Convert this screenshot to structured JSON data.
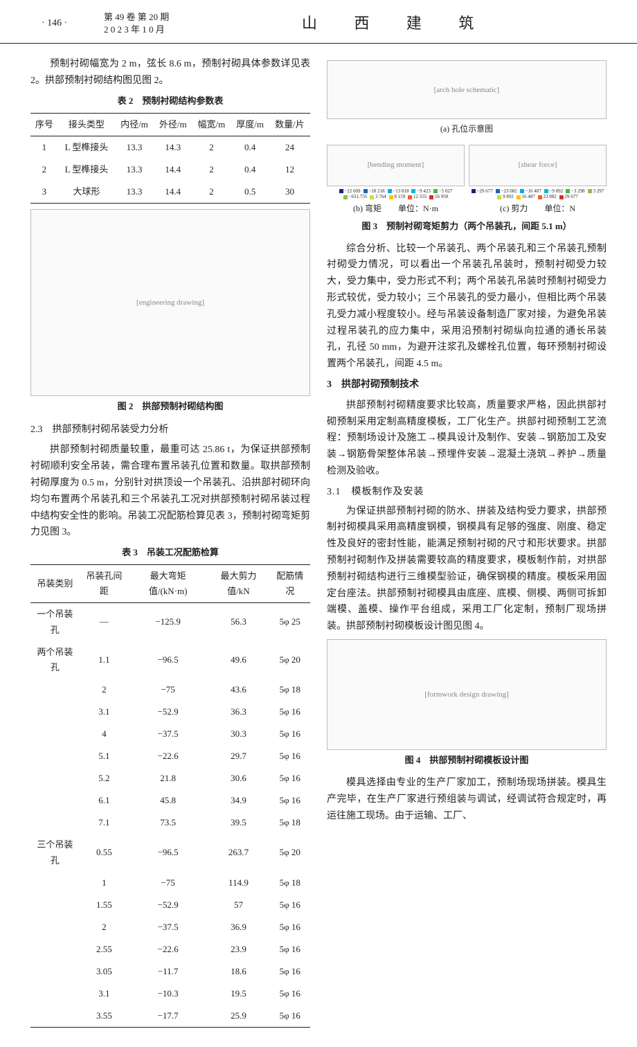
{
  "header": {
    "page_number": "· 146 ·",
    "volume": "第 49 卷 第 20 期",
    "date": "2 0 2 3 年 1 0 月",
    "journal": "山 西 建 筑"
  },
  "left": {
    "p1": "预制衬砌幅宽为 2 m，弦长 8.6 m，预制衬砌具体参数详见表 2。拱部预制衬砌结构图见图 2。",
    "table2_title": "表 2　预制衬砌结构参数表",
    "table2_cols": [
      "序号",
      "接头类型",
      "内径/m",
      "外径/m",
      "幅宽/m",
      "厚度/m",
      "数量/片"
    ],
    "table2_rows": [
      [
        "1",
        "L 型榫接头",
        "13.3",
        "14.3",
        "2",
        "0.4",
        "24"
      ],
      [
        "2",
        "L 型榫接头",
        "13.3",
        "14.4",
        "2",
        "0.4",
        "12"
      ],
      [
        "3",
        "大球形",
        "13.3",
        "14.4",
        "2",
        "0.5",
        "30"
      ]
    ],
    "fig2_caption": "图 2　拱部预制衬砌结构图",
    "sec23": "2.3　拱部预制衬砌吊装受力分析",
    "p2": "拱部预制衬砌质量较重，最重可达 25.86 t，为保证拱部预制衬砌顺利安全吊装，需合理布置吊装孔位置和数量。取拱部预制衬砌厚度为 0.5 m，分别针对拱顶设一个吊装孔、沿拱部衬砌环向均匀布置两个吊装孔和三个吊装孔工况对拱部预制衬砌吊装过程中结构安全性的影响。吊装工况配筋检算见表 3，预制衬砌弯矩剪力见图 3。",
    "table3_title": "表 3　吊装工况配筋检算",
    "table3_cols": [
      "吊装类别",
      "吊装孔间距",
      "最大弯矩值/(kN·m)",
      "最大剪力值/kN",
      "配筋情况"
    ],
    "table3_rows": [
      [
        "一个吊装孔",
        "—",
        "−125.9",
        "56.3",
        "5φ 25"
      ],
      [
        "两个吊装孔",
        "1.1",
        "−96.5",
        "49.6",
        "5φ 20"
      ],
      [
        "",
        "2",
        "−75",
        "43.6",
        "5φ 18"
      ],
      [
        "",
        "3.1",
        "−52.9",
        "36.3",
        "5φ 16"
      ],
      [
        "",
        "4",
        "−37.5",
        "30.3",
        "5φ 16"
      ],
      [
        "",
        "5.1",
        "−22.6",
        "29.7",
        "5φ 16"
      ],
      [
        "",
        "5.2",
        "21.8",
        "30.6",
        "5φ 16"
      ],
      [
        "",
        "6.1",
        "45.8",
        "34.9",
        "5φ 16"
      ],
      [
        "",
        "7.1",
        "73.5",
        "39.5",
        "5φ 18"
      ],
      [
        "三个吊装孔",
        "0.55",
        "−96.5",
        "263.7",
        "5φ 20"
      ],
      [
        "",
        "1",
        "−75",
        "114.9",
        "5φ 18"
      ],
      [
        "",
        "1.55",
        "−52.9",
        "57",
        "5φ 16"
      ],
      [
        "",
        "2",
        "−37.5",
        "36.9",
        "5φ 16"
      ],
      [
        "",
        "2.55",
        "−22.6",
        "23.9",
        "5φ 16"
      ],
      [
        "",
        "3.05",
        "−11.7",
        "18.6",
        "5φ 16"
      ],
      [
        "",
        "3.1",
        "−10.3",
        "19.5",
        "5φ 16"
      ],
      [
        "",
        "3.55",
        "−17.7",
        "25.9",
        "5φ 16"
      ]
    ]
  },
  "right": {
    "fig3_sub_a": "(a) 孔位示意图",
    "fig3_sub_b": "(b) 弯矩　　单位：N·m",
    "fig3_sub_c": "(c) 剪力　　单位：N",
    "fig3_caption": "图 3　预制衬砌弯矩剪力（两个吊装孔，间距 5.1 m）",
    "legend_b": [
      "−22 609",
      "−18 218",
      "−13 818",
      "−9 423",
      "−5 027",
      "−631.735",
      "3 764",
      "8 159",
      "12 555",
      "16 950"
    ],
    "legend_c": [
      "−29 677",
      "−23 082",
      "−16 487",
      "−9 892",
      "−3 298",
      "3 297",
      "9 892",
      "16 487",
      "23 082",
      "29 677"
    ],
    "legend_colors": [
      "#1a237e",
      "#1565c0",
      "#03a9f4",
      "#00bcd4",
      "#4caf50",
      "#8bc34a",
      "#cddc39",
      "#ffc107",
      "#ff5722",
      "#d32f2f"
    ],
    "p3": "综合分析、比较一个吊装孔、两个吊装孔和三个吊装孔预制衬砌受力情况，可以看出一个吊装孔吊装时，预制衬砌受力较大，受力集中，受力形式不利；两个吊装孔吊装时预制衬砌受力形式较优，受力较小；三个吊装孔的受力最小，但相比两个吊装孔受力减小程度较小。经与吊装设备制造厂家对接，为避免吊装过程吊装孔的应力集中，采用沿预制衬砌纵向拉通的通长吊装孔，孔径 50 mm，为避开注浆孔及螺栓孔位置，每环预制衬砌设置两个吊装孔，间距 4.5 m。",
    "sec3": "3　拱部衬砌预制技术",
    "p4": "拱部预制衬砌精度要求比较高，质量要求严格，因此拱部衬砌预制采用定制高精度模板，工厂化生产。拱部衬砌预制工艺流程：预制场设计及施工→模具设计及制作、安装→钢筋加工及安装→钢筋骨架整体吊装→预埋件安装→混凝土浇筑→养护→质量检测及验收。",
    "sec31": "3.1　模板制作及安装",
    "p5": "为保证拱部预制衬砌的防水、拼装及结构受力要求，拱部预制衬砌模具采用高精度钢模，钢模具有足够的强度、刚度、稳定性及良好的密封性能，能满足预制衬砌的尺寸和形状要求。拱部预制衬砌制作及拼装需要较高的精度要求，模板制作前，对拱部预制衬砌结构进行三维模型验证，确保钢模的精度。模板采用固定台座法。拱部预制衬砌模具由底座、底模、侧模、两侧可拆卸端模、盖模、操作平台组成，采用工厂化定制，预制厂现场拼装。拱部预制衬砌模板设计图见图 4。",
    "fig4_caption": "图 4　拱部预制衬砌模板设计图",
    "p6": "模具选择由专业的生产厂家加工，预制场现场拼装。模具生产完毕，在生产厂家进行预组装与调试，经调试符合规定时，再运往施工现场。由于运输、工厂、"
  },
  "figures": {
    "fig2_height": 270,
    "fig3_height": 200,
    "fig4_height": 160
  }
}
